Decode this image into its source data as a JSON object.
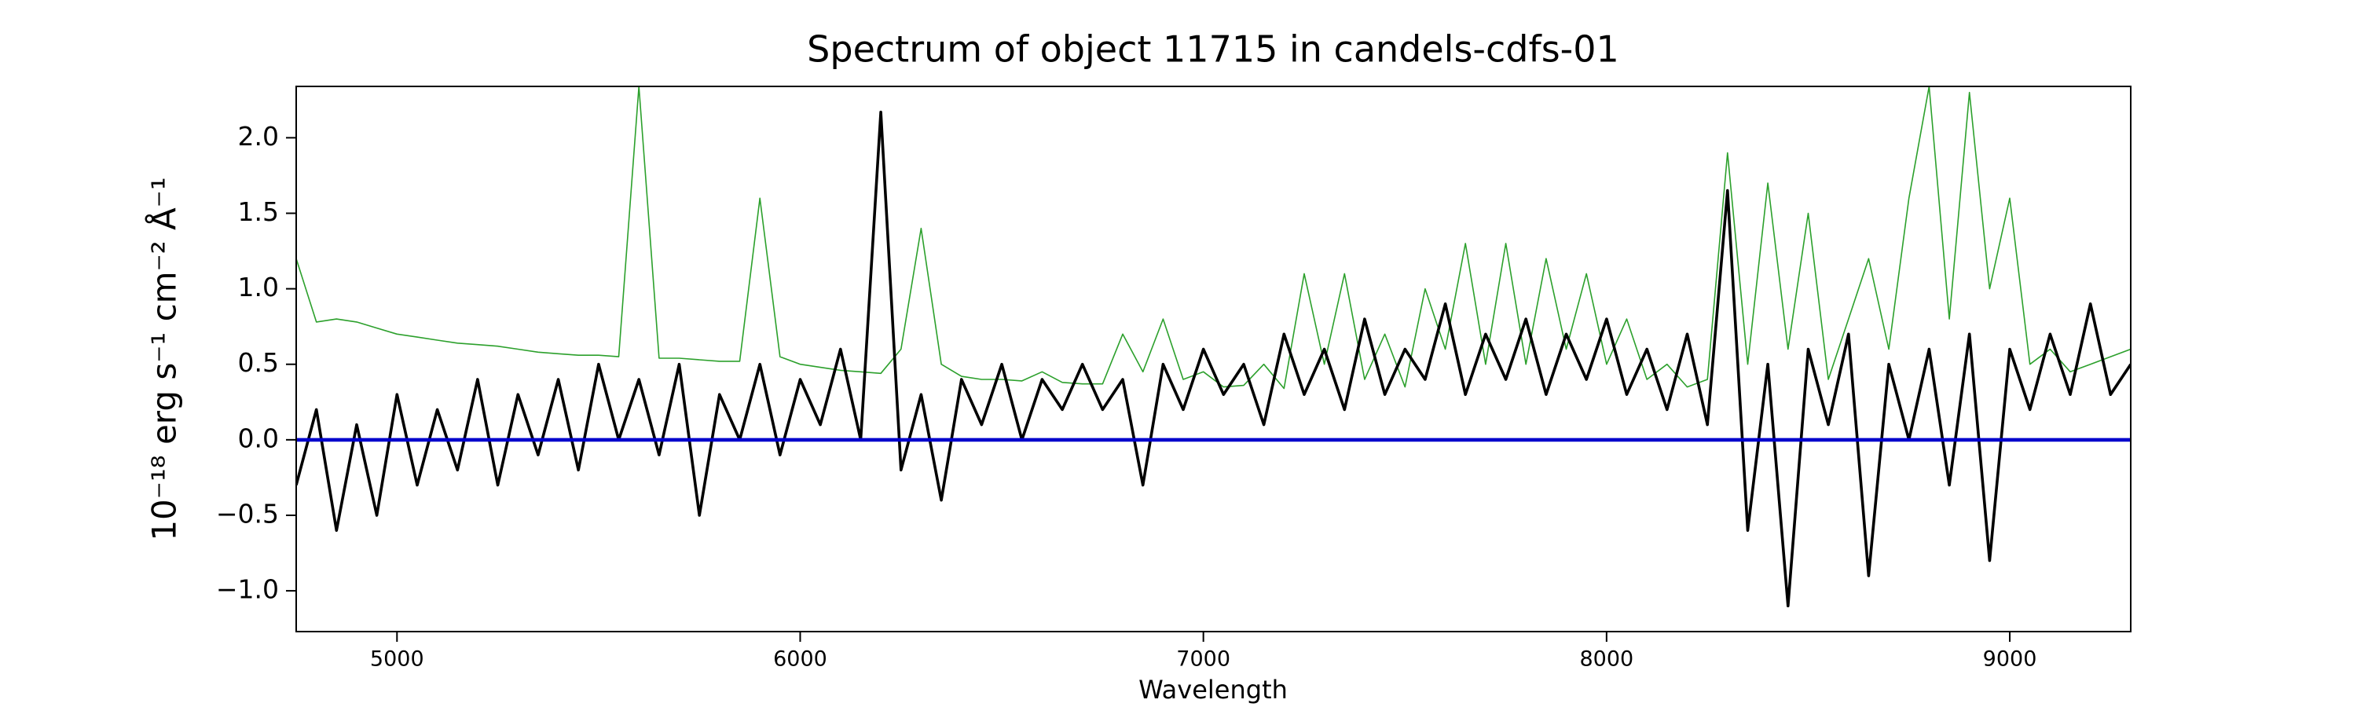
{
  "chart_data": {
    "type": "line",
    "title": "Spectrum of object 11715 in candels-cdfs-01",
    "xlabel": "Wavelength",
    "ylabel": "10⁻¹⁸ erg s⁻¹ cm⁻² Å⁻¹",
    "x": [
      4750,
      4800,
      4850,
      4900,
      4950,
      5000,
      5050,
      5100,
      5150,
      5200,
      5250,
      5300,
      5350,
      5400,
      5450,
      5500,
      5550,
      5600,
      5650,
      5700,
      5750,
      5800,
      5850,
      5900,
      5950,
      6000,
      6050,
      6100,
      6150,
      6200,
      6250,
      6300,
      6350,
      6400,
      6450,
      6500,
      6550,
      6600,
      6650,
      6700,
      6750,
      6800,
      6850,
      6900,
      6950,
      7000,
      7050,
      7100,
      7150,
      7200,
      7250,
      7300,
      7350,
      7400,
      7450,
      7500,
      7550,
      7600,
      7650,
      7700,
      7750,
      7800,
      7850,
      7900,
      7950,
      8000,
      8050,
      8100,
      8150,
      8200,
      8250,
      8300,
      8350,
      8400,
      8450,
      8500,
      8550,
      8600,
      8650,
      8700,
      8750,
      8800,
      8850,
      8900,
      8950,
      9000,
      9050,
      9100,
      9150,
      9200,
      9250,
      9300
    ],
    "series": [
      {
        "color": "#2ca02c",
        "width": 1.6,
        "values": [
          1.2,
          0.78,
          0.8,
          0.78,
          0.74,
          0.7,
          0.68,
          0.66,
          0.64,
          0.63,
          0.62,
          0.6,
          0.58,
          0.57,
          0.56,
          0.56,
          0.55,
          2.34,
          0.54,
          0.54,
          0.53,
          0.52,
          0.52,
          1.6,
          0.55,
          0.5,
          0.48,
          0.46,
          0.45,
          0.44,
          0.6,
          1.4,
          0.5,
          0.42,
          0.4,
          0.4,
          0.39,
          0.45,
          0.38,
          0.37,
          0.37,
          0.7,
          0.45,
          0.8,
          0.4,
          0.45,
          0.35,
          0.36,
          0.5,
          0.34,
          1.1,
          0.5,
          1.1,
          0.4,
          0.7,
          0.35,
          1.0,
          0.6,
          1.3,
          0.5,
          1.3,
          0.5,
          1.2,
          0.6,
          1.1,
          0.5,
          0.8,
          0.4,
          0.5,
          0.35,
          0.4,
          1.9,
          0.5,
          1.7,
          0.6,
          1.5,
          0.4,
          0.8,
          1.2,
          0.6,
          1.6,
          2.34,
          0.8,
          2.3,
          1.0,
          1.6,
          0.5,
          0.6,
          0.45,
          0.5,
          0.55,
          0.6
        ]
      },
      {
        "color": "#000000",
        "width": 3.6,
        "values": [
          -0.3,
          0.2,
          -0.6,
          0.1,
          -0.5,
          0.3,
          -0.3,
          0.2,
          -0.2,
          0.4,
          -0.3,
          0.3,
          -0.1,
          0.4,
          -0.2,
          0.5,
          0.0,
          0.4,
          -0.1,
          0.5,
          -0.5,
          0.3,
          0.0,
          0.5,
          -0.1,
          0.4,
          0.1,
          0.6,
          0.0,
          2.17,
          -0.2,
          0.3,
          -0.4,
          0.4,
          0.1,
          0.5,
          0.0,
          0.4,
          0.2,
          0.5,
          0.2,
          0.4,
          -0.3,
          0.5,
          0.2,
          0.6,
          0.3,
          0.5,
          0.1,
          0.7,
          0.3,
          0.6,
          0.2,
          0.8,
          0.3,
          0.6,
          0.4,
          0.9,
          0.3,
          0.7,
          0.4,
          0.8,
          0.3,
          0.7,
          0.4,
          0.8,
          0.3,
          0.6,
          0.2,
          0.7,
          0.1,
          1.65,
          -0.6,
          0.5,
          -1.1,
          0.6,
          0.1,
          0.7,
          -0.9,
          0.5,
          0.0,
          0.6,
          -0.3,
          0.7,
          -0.8,
          0.6,
          0.2,
          0.7,
          0.3,
          0.9,
          0.3,
          0.5
        ]
      },
      {
        "color": "#0000cc",
        "width": 4.6,
        "x": [
          4750,
          9300
        ],
        "values": [
          0,
          0
        ]
      }
    ],
    "xlim": [
      4750,
      9300
    ],
    "ylim": [
      -1.27,
      2.34
    ],
    "xticks": [
      5000,
      6000,
      7000,
      8000,
      9000
    ],
    "yticks": [
      {
        "value": -1,
        "label": "−1.0"
      },
      {
        "value": -0.5,
        "label": "−0.5"
      },
      {
        "value": 0,
        "label": "0.0"
      },
      0.5,
      {
        "value": 1,
        "label": "1.0"
      },
      1.5,
      {
        "value": 2,
        "label": "2.0"
      }
    ],
    "grid": false
  }
}
